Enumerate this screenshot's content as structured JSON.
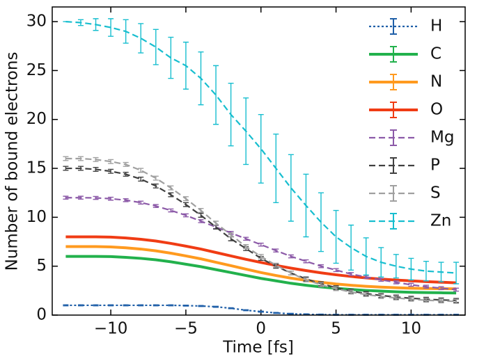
{
  "chart_data": {
    "type": "line",
    "xlabel": "Time [fs]",
    "ylabel": "Number of bound electrons",
    "x": [
      -13,
      -12,
      -11,
      -10,
      -9,
      -8,
      -7,
      -6,
      -5,
      -4,
      -3,
      -2,
      -1,
      0,
      1,
      2,
      3,
      4,
      5,
      6,
      7,
      8,
      9,
      10,
      11,
      12,
      13
    ],
    "xlim": [
      -13.9,
      13.6
    ],
    "ylim": [
      0,
      31.5
    ],
    "xticks": [
      {
        "value": -10,
        "label": "−10"
      },
      {
        "value": -5,
        "label": "−5"
      },
      0,
      5,
      10
    ],
    "yticks": [
      0,
      5,
      10,
      15,
      20,
      25,
      30
    ],
    "legend": "upper right",
    "series": [
      {
        "name": "H",
        "color": "#1f5fa8",
        "style": "dotted",
        "values": [
          1.0,
          1.0,
          1.0,
          1.0,
          1.0,
          1.0,
          1.0,
          1.0,
          0.97,
          0.93,
          0.85,
          0.7,
          0.5,
          0.35,
          0.22,
          0.13,
          0.08,
          0.05,
          0.03,
          0.03,
          0.03,
          0.03,
          0.03,
          0.03,
          0.03,
          0.03,
          0.03
        ],
        "errors": [
          0.05,
          0.05,
          0.05,
          0.05,
          0.05,
          0.05,
          0.05,
          0.05,
          0.05,
          0.05,
          0.05,
          0.05,
          0.05,
          0.05,
          0.05,
          0.05,
          0.05,
          0.05,
          0.05,
          0.05,
          0.05,
          0.05,
          0.05,
          0.05,
          0.05,
          0.05,
          0.05
        ]
      },
      {
        "name": "C",
        "color": "#22b14c",
        "style": "solid",
        "values": [
          6,
          6,
          6,
          5.98,
          5.9,
          5.8,
          5.65,
          5.45,
          5.2,
          4.95,
          4.65,
          4.35,
          4.05,
          3.75,
          3.5,
          3.25,
          3.05,
          2.88,
          2.74,
          2.62,
          2.52,
          2.45,
          2.38,
          2.33,
          2.3,
          2.28,
          2.26
        ]
      },
      {
        "name": "N",
        "color": "#ff9a1f",
        "style": "solid",
        "values": [
          7,
          7,
          7,
          6.97,
          6.88,
          6.75,
          6.57,
          6.33,
          6.05,
          5.75,
          5.4,
          5.05,
          4.7,
          4.35,
          4.05,
          3.78,
          3.55,
          3.35,
          3.18,
          3.05,
          2.94,
          2.86,
          2.8,
          2.75,
          2.72,
          2.7,
          2.68
        ]
      },
      {
        "name": "O",
        "color": "#f03c14",
        "style": "solid",
        "values": [
          8,
          8,
          8,
          7.97,
          7.88,
          7.75,
          7.57,
          7.33,
          7.05,
          6.75,
          6.4,
          6.05,
          5.7,
          5.38,
          5.08,
          4.8,
          4.55,
          4.32,
          4.12,
          3.95,
          3.8,
          3.68,
          3.58,
          3.5,
          3.42,
          3.36,
          3.3
        ]
      },
      {
        "name": "Mg",
        "color": "#8c5aa8",
        "style": "dashed",
        "values": [
          12,
          12,
          11.98,
          11.9,
          11.75,
          11.5,
          11.15,
          10.7,
          10.2,
          9.6,
          9.0,
          8.4,
          7.8,
          7.2,
          6.6,
          6.0,
          5.5,
          5.0,
          4.6,
          4.2,
          3.9,
          3.6,
          3.35,
          3.1,
          2.9,
          2.75,
          2.6
        ],
        "errors": [
          0.15,
          0.15,
          0.15,
          0.15,
          0.15,
          0.15,
          0.15,
          0.15,
          0.15,
          0.15,
          0.15,
          0.15,
          0.15,
          0.15,
          0.15,
          0.15,
          0.15,
          0.15,
          0.15,
          0.15,
          0.15,
          0.15,
          0.15,
          0.15,
          0.15,
          0.15,
          0.15
        ]
      },
      {
        "name": "P",
        "color": "#404040",
        "style": "dashed",
        "values": [
          15,
          15,
          14.9,
          14.7,
          14.4,
          13.9,
          13.2,
          12.3,
          11.3,
          10.2,
          9.0,
          7.8,
          6.8,
          5.8,
          5.0,
          4.3,
          3.7,
          3.2,
          2.8,
          2.45,
          2.2,
          2.0,
          1.85,
          1.72,
          1.62,
          1.55,
          1.5
        ],
        "errors": [
          0.2,
          0.2,
          0.2,
          0.2,
          0.2,
          0.2,
          0.2,
          0.2,
          0.2,
          0.2,
          0.2,
          0.2,
          0.2,
          0.2,
          0.2,
          0.2,
          0.2,
          0.2,
          0.2,
          0.2,
          0.2,
          0.2,
          0.2,
          0.2,
          0.2,
          0.2,
          0.2
        ]
      },
      {
        "name": "S",
        "color": "#a0a0a0",
        "style": "dashed",
        "values": [
          16,
          16,
          15.9,
          15.7,
          15.4,
          14.8,
          14.0,
          13.0,
          11.9,
          10.7,
          9.4,
          8.2,
          7.0,
          6.0,
          5.1,
          4.3,
          3.6,
          3.1,
          2.7,
          2.35,
          2.1,
          1.9,
          1.75,
          1.62,
          1.52,
          1.45,
          1.4
        ],
        "errors": [
          0.2,
          0.2,
          0.2,
          0.2,
          0.2,
          0.2,
          0.2,
          0.2,
          0.2,
          0.2,
          0.2,
          0.2,
          0.2,
          0.2,
          0.2,
          0.2,
          0.2,
          0.2,
          0.2,
          0.2,
          0.2,
          0.2,
          0.2,
          0.2,
          0.2,
          0.2,
          0.2
        ]
      },
      {
        "name": "Zn",
        "color": "#17becf",
        "style": "dashed",
        "values": [
          30.0,
          29.9,
          29.7,
          29.4,
          29.0,
          28.3,
          27.4,
          26.3,
          25.5,
          24.2,
          22.5,
          20.5,
          18.8,
          17.0,
          15.0,
          13.0,
          11.2,
          9.5,
          8.0,
          6.9,
          6.0,
          5.4,
          5.0,
          4.7,
          4.5,
          4.4,
          4.3
        ],
        "errors": [
          0,
          0.3,
          0.6,
          0.9,
          1.2,
          1.5,
          1.8,
          2.1,
          2.4,
          2.7,
          3.0,
          3.2,
          3.4,
          3.5,
          3.5,
          3.4,
          3.2,
          3.0,
          2.7,
          2.3,
          1.9,
          1.5,
          1.2,
          1.1,
          1.0,
          1.0,
          1.1
        ]
      }
    ]
  }
}
